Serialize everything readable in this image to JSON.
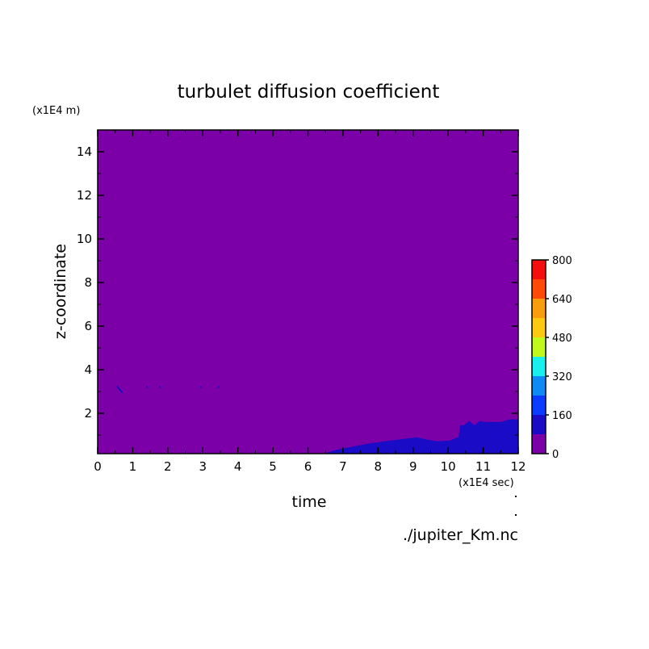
{
  "chart_data": {
    "type": "heatmap",
    "title": "turbulet diffusion coefficient",
    "xlabel": "time",
    "ylabel": "z-coordinate",
    "x_unit": "(x1E4 sec)",
    "y_unit": "(x1E4 m)",
    "source_file": "./jupiter_Km.nc",
    "xlim": [
      0,
      12
    ],
    "ylim": [
      0.15,
      15
    ],
    "x_ticks": [
      0,
      1,
      2,
      3,
      4,
      5,
      6,
      7,
      8,
      9,
      10,
      11,
      12
    ],
    "y_ticks": [
      2,
      4,
      6,
      8,
      10,
      12,
      14
    ],
    "colorbar": {
      "levels": [
        0,
        80,
        160,
        240,
        320,
        400,
        480,
        560,
        640,
        720,
        800
      ],
      "tick_labels": [
        0,
        160,
        320,
        480,
        640,
        800
      ],
      "colors": [
        "#7c00a8",
        "#1a0bc6",
        "#0a3cff",
        "#0f8af5",
        "#16f1ee",
        "#c0f91b",
        "#fbc90f",
        "#f89e0e",
        "#ff4a07",
        "#f30f0f",
        "#f7afaf"
      ]
    },
    "background_level_range": [
      0,
      80
    ],
    "regions": [
      {
        "level_range": [
          80,
          160
        ],
        "boundary": [
          [
            6.5,
            0.15
          ],
          [
            6.55,
            0.2
          ],
          [
            6.8,
            0.32
          ],
          [
            7.2,
            0.45
          ],
          [
            7.7,
            0.6
          ],
          [
            8.2,
            0.72
          ],
          [
            8.7,
            0.82
          ],
          [
            9.1,
            0.9
          ],
          [
            9.45,
            0.78
          ],
          [
            9.7,
            0.72
          ],
          [
            10.05,
            0.75
          ],
          [
            10.3,
            0.92
          ],
          [
            10.34,
            1.45
          ],
          [
            10.45,
            1.45
          ],
          [
            10.6,
            1.65
          ],
          [
            10.75,
            1.45
          ],
          [
            10.9,
            1.65
          ],
          [
            11.05,
            1.6
          ],
          [
            11.5,
            1.6
          ],
          [
            11.75,
            1.72
          ],
          [
            12,
            1.72
          ],
          [
            12,
            0.15
          ]
        ]
      }
    ],
    "small_features": [
      {
        "level_range": [
          80,
          160
        ],
        "x": [
          0.55,
          0.7
        ],
        "y": [
          3.25,
          2.95
        ]
      },
      {
        "level_range": [
          80,
          160
        ],
        "x": [
          1.38,
          1.42
        ],
        "y": [
          3.2,
          3.2
        ]
      },
      {
        "level_range": [
          80,
          160
        ],
        "x": [
          1.75,
          1.78
        ],
        "y": [
          3.2,
          3.2
        ]
      },
      {
        "level_range": [
          80,
          160
        ],
        "x": [
          2.92,
          2.96
        ],
        "y": [
          3.2,
          3.2
        ]
      },
      {
        "level_range": [
          80,
          160
        ],
        "x": [
          3.42,
          3.45
        ],
        "y": [
          3.2,
          3.2
        ]
      },
      {
        "level_range": [
          80,
          160
        ],
        "x": [
          11.6,
          11.75
        ],
        "y": [
          0.95,
          0.95
        ]
      }
    ]
  }
}
